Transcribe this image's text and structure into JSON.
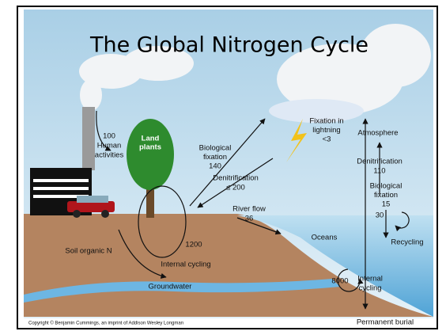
{
  "title": "The Global Nitrogen Cycle",
  "labels": [
    {
      "lines": [
        "100",
        "Human",
        "activities"
      ]
    },
    {
      "lines": [
        "Land",
        "plants"
      ]
    },
    {
      "lines": [
        "Biological",
        "fixation",
        "140"
      ]
    },
    {
      "lines": [
        "Denitrification",
        "≤ 200"
      ]
    },
    {
      "lines": [
        "Fixation in",
        "lightning",
        "<3"
      ]
    },
    {
      "lines": [
        "Atmosphere"
      ]
    },
    {
      "lines": [
        "Denitrification",
        "110"
      ]
    },
    {
      "lines": [
        "Biological",
        "fixation",
        "15"
      ]
    },
    {
      "lines": [
        "30"
      ]
    },
    {
      "lines": [
        "Recycling"
      ]
    },
    {
      "lines": [
        "River flow",
        "36"
      ]
    },
    {
      "lines": [
        "1200"
      ]
    },
    {
      "lines": [
        "Internal cycling"
      ]
    },
    {
      "lines": [
        "Soil organic N"
      ]
    },
    {
      "lines": [
        "Groundwater"
      ]
    },
    {
      "lines": [
        "Oceans"
      ]
    },
    {
      "lines": [
        "8000"
      ]
    },
    {
      "lines": [
        "Internal",
        "cycling"
      ]
    },
    {
      "lines": [
        "Permanent burial"
      ]
    }
  ],
  "copyright": "Copyright © Benjamin Cummings, an imprint of Addison Wesley Longman"
}
